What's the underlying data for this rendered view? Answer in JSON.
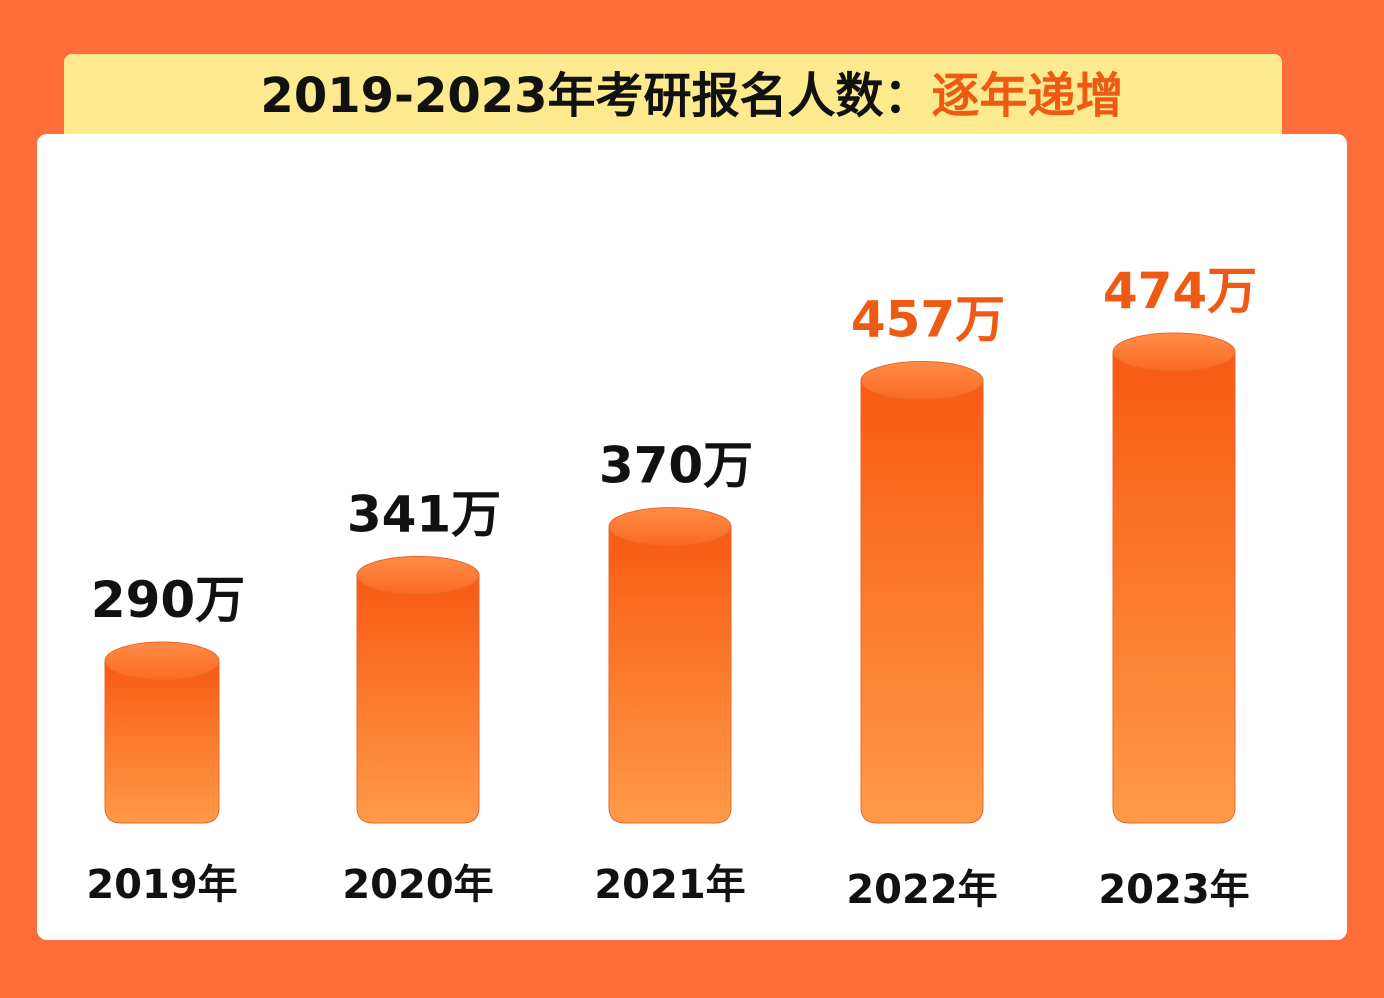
{
  "title": {
    "main": "2019-2023年考研报名人数：",
    "accent": "逐年递增"
  },
  "colors": {
    "background": "#ff6d3a",
    "title_band": "#fdea8f",
    "accent": "#ee5a14",
    "bar_top": "#f85a14",
    "bar_bottom": "#ff9a48",
    "text": "#111111"
  },
  "chart_data": {
    "type": "bar",
    "categories": [
      "2019年",
      "2020年",
      "2021年",
      "2022年",
      "2023年"
    ],
    "values": [
      290,
      341,
      370,
      457,
      474
    ],
    "value_labels": [
      "290万",
      "341万",
      "370万",
      "457万",
      "474万"
    ],
    "highlighted": [
      false,
      false,
      false,
      true,
      true
    ],
    "ylim": [
      0,
      474
    ],
    "grid": false,
    "legend": "none"
  }
}
